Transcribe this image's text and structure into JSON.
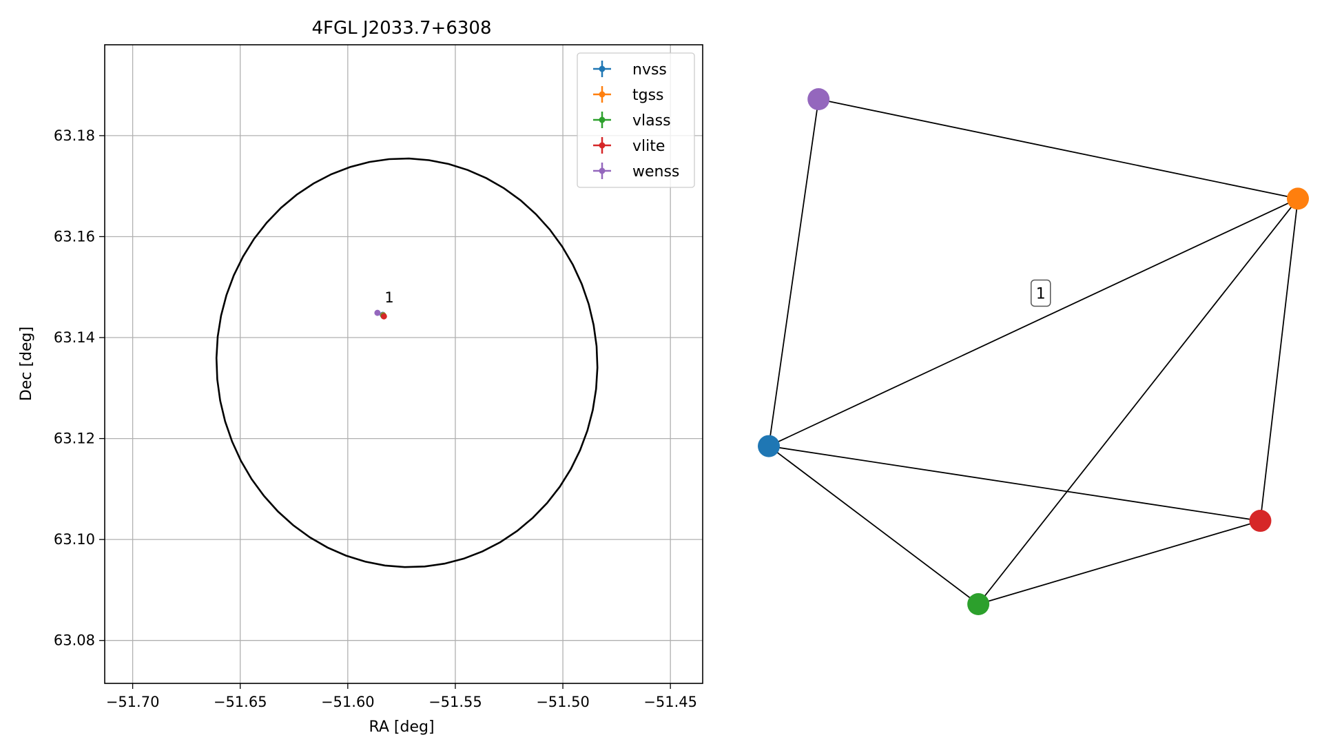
{
  "chart_data": [
    {
      "type": "scatter",
      "title": "4FGL J2033.7+6308",
      "xlabel": "RA [deg]",
      "ylabel": "Dec [deg]",
      "xlim": [
        -51.713,
        -51.435
      ],
      "ylim": [
        63.0715,
        63.198
      ],
      "xticks": [
        -51.7,
        -51.65,
        -51.6,
        -51.55,
        -51.5,
        -51.45
      ],
      "xtick_labels": [
        "−51.70",
        "−51.65",
        "−51.60",
        "−51.55",
        "−51.50",
        "−51.45"
      ],
      "yticks": [
        63.08,
        63.1,
        63.12,
        63.14,
        63.16,
        63.18
      ],
      "ytick_labels": [
        "63.08",
        "63.10",
        "63.12",
        "63.14",
        "63.16",
        "63.18"
      ],
      "grid": true,
      "legend_position": "top-right",
      "series": [
        {
          "name": "nvss",
          "color": "#1f77b4",
          "x": [
            -51.5837
          ],
          "y": [
            63.1445
          ]
        },
        {
          "name": "tgss",
          "color": "#ff7f0e",
          "x": [
            -51.5835
          ],
          "y": [
            63.1444
          ]
        },
        {
          "name": "vlass",
          "color": "#2ca02c",
          "x": [
            -51.5834
          ],
          "y": [
            63.1443
          ]
        },
        {
          "name": "vlite",
          "color": "#d62728",
          "x": [
            -51.5832
          ],
          "y": [
            63.1442
          ]
        },
        {
          "name": "wenss",
          "color": "#9467bd",
          "x": [
            -51.5862
          ],
          "y": [
            63.1449
          ]
        }
      ],
      "error_ellipse": {
        "center": [
          -51.5725,
          63.135
        ],
        "semi_major_ra": 0.0885,
        "semi_minor_dec": 0.0405,
        "angle_deg": 5,
        "color": "#000000"
      },
      "annotations": [
        {
          "text": "1",
          "x": -51.5835,
          "y": 63.1475
        }
      ]
    },
    {
      "type": "network",
      "nodes": [
        {
          "id": "nvss",
          "color": "#1f77b4",
          "x": 0.0,
          "y": 0.313
        },
        {
          "id": "tgss",
          "color": "#ff7f0e",
          "x": 1.0,
          "y": 0.803
        },
        {
          "id": "vlass",
          "color": "#2ca02c",
          "x": 0.396,
          "y": 0.0
        },
        {
          "id": "vlite",
          "color": "#d62728",
          "x": 0.929,
          "y": 0.165
        },
        {
          "id": "wenss",
          "color": "#9467bd",
          "x": 0.094,
          "y": 1.0
        }
      ],
      "edges": [
        [
          "wenss",
          "tgss"
        ],
        [
          "wenss",
          "nvss"
        ],
        [
          "nvss",
          "tgss"
        ],
        [
          "nvss",
          "vlite"
        ],
        [
          "nvss",
          "vlass"
        ],
        [
          "vlass",
          "tgss"
        ],
        [
          "vlass",
          "vlite"
        ],
        [
          "tgss",
          "vlite"
        ]
      ],
      "label": {
        "text": "1",
        "x": 0.514,
        "y": 0.616
      }
    }
  ]
}
